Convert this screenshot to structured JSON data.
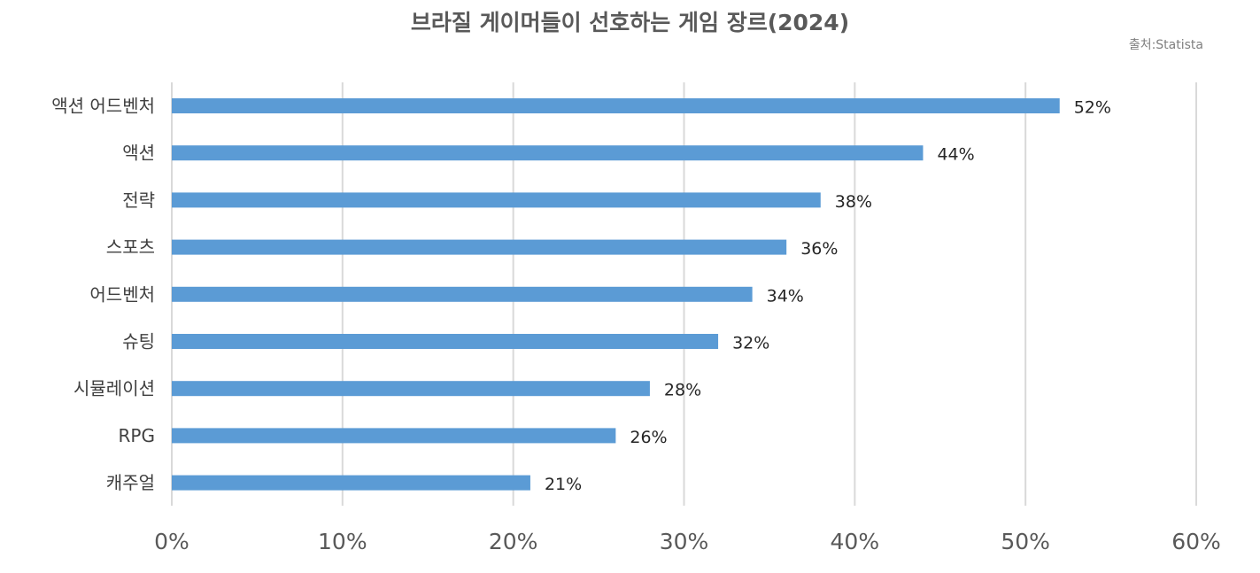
{
  "chart_data": {
    "type": "bar",
    "orientation": "horizontal",
    "title": "브라질 게이머들이 선호하는 게임 장르(2024)",
    "source": "출처:Statista",
    "categories": [
      "액션 어드벤처",
      "액션",
      "전략",
      "스포츠",
      "어드벤처",
      "슈팅",
      "시뮬레이션",
      "RPG",
      "캐주얼"
    ],
    "values": [
      52,
      44,
      38,
      36,
      34,
      32,
      28,
      26,
      21
    ],
    "value_suffix": "%",
    "xlim": [
      0,
      60
    ],
    "x_ticks": [
      "0%",
      "10%",
      "20%",
      "30%",
      "40%",
      "50%",
      "60%"
    ],
    "grid": "vertical",
    "bar_color": "#5B9BD5",
    "grid_color": "#D9D9D9"
  }
}
